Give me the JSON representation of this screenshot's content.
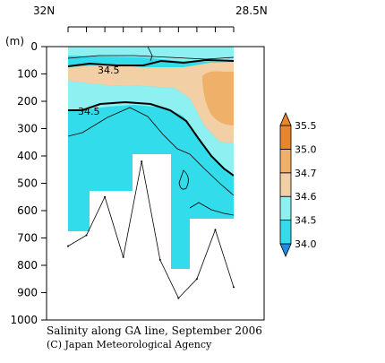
{
  "chart_data": {
    "type": "contour-section",
    "title": "Salinity along GA line, September 2006",
    "credit": "(C) Japan Meteorological Agency",
    "x_labels": {
      "left": "32N",
      "right": "28.5N"
    },
    "y_unit_label": "(m)",
    "y_ticks": [
      0,
      100,
      200,
      300,
      400,
      500,
      600,
      700,
      800,
      900,
      1000
    ],
    "ylim": [
      0,
      1000
    ],
    "colorbar": {
      "levels": [
        34.0,
        34.5,
        34.6,
        34.7,
        35.0,
        35.5
      ],
      "labels": [
        "34.0",
        "34.5",
        "34.6",
        "34.7",
        "35.0",
        "35.5"
      ],
      "colors": [
        "#1f8de0",
        "#33dcea",
        "#8ff0f2",
        "#f3cfa6",
        "#efb06a",
        "#e9862b"
      ]
    },
    "contour_labels": [
      {
        "value": "34.5",
        "depth": 80
      },
      {
        "value": "34.5",
        "depth": 235
      }
    ],
    "bottom_depth_profile": [
      {
        "station": 1,
        "depth": 730
      },
      {
        "station": 2,
        "depth": 690
      },
      {
        "station": 3,
        "depth": 550
      },
      {
        "station": 4,
        "depth": 770
      },
      {
        "station": 5,
        "depth": 420
      },
      {
        "station": 6,
        "depth": 780
      },
      {
        "station": 7,
        "depth": 920
      },
      {
        "station": 8,
        "depth": 850
      },
      {
        "station": 9,
        "depth": 670
      },
      {
        "station": 10,
        "depth": 880
      }
    ]
  }
}
